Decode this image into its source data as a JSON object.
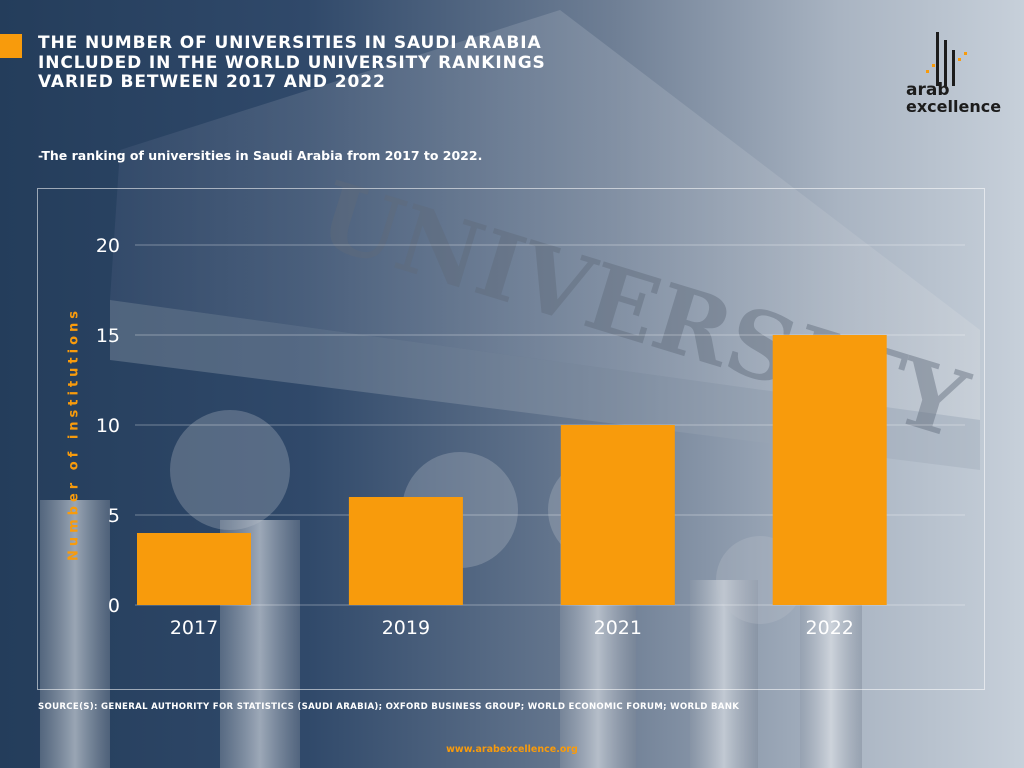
{
  "header": {
    "title_lines": [
      "THE NUMBER OF UNIVERSITIES IN SAUDI ARABIA",
      "INCLUDED IN THE WORLD UNIVERSITY RANKINGS",
      "VARIED BETWEEN 2017 AND 2022"
    ],
    "subtitle": "-The ranking of universities in Saudi Arabia from 2017 to 2022."
  },
  "logo": {
    "line1": "arab",
    "line2": "excellence"
  },
  "background": {
    "engraving": "UNIVERSITY"
  },
  "chart_data": {
    "type": "bar",
    "categories": [
      "2017",
      "2019",
      "2021",
      "2022"
    ],
    "values": [
      4,
      6,
      10,
      15
    ],
    "ylabel": "Number of institutions",
    "ylim": [
      0,
      20
    ],
    "yticks": [
      0,
      5,
      10,
      15,
      20
    ],
    "grid": true,
    "bar_color": "#f89b0c"
  },
  "footer": {
    "source": "SOURCE(S): GENERAL AUTHORITY FOR STATISTICS (SAUDI ARABIA); OXFORD BUSINESS GROUP; WORLD ECONOMIC FORUM; WORLD BANK",
    "website": "www.arabexcellence.org"
  },
  "colors": {
    "accent": "#f89b0c",
    "text": "#ffffff"
  }
}
